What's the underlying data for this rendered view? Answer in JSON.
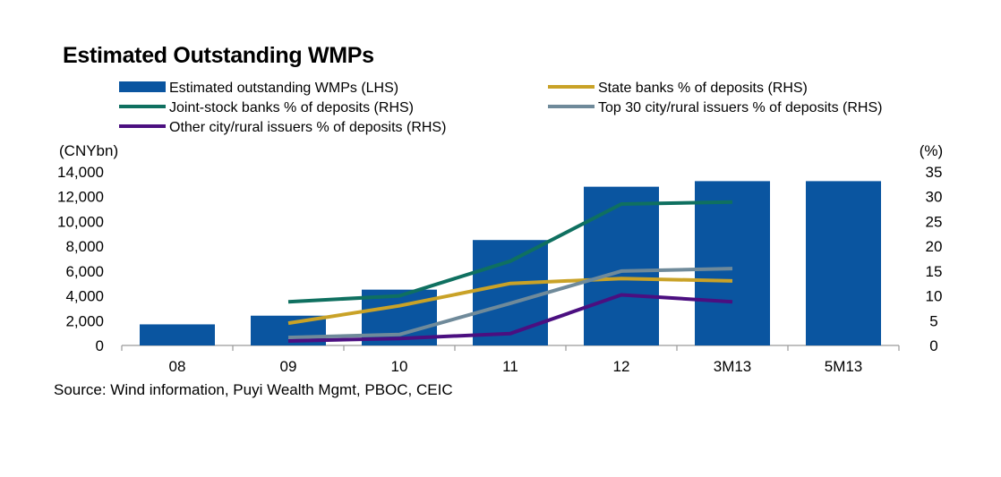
{
  "title": "Estimated Outstanding WMPs",
  "source": "Source: Wind information, Puyi Wealth Mgmt, PBOC, CEIC",
  "chart_data": {
    "type": "bar",
    "categories": [
      "08",
      "09",
      "10",
      "11",
      "12",
      "3M13",
      "5M13"
    ],
    "bars": {
      "name": "Estimated outstanding WMPs (LHS)",
      "color": "#0a55a0",
      "values": [
        1700,
        2400,
        4500,
        8500,
        12800,
        13250,
        13250
      ]
    },
    "lines": [
      {
        "name": "State banks % of deposits (RHS)",
        "color": "#c9a227",
        "values": [
          null,
          4.5,
          8.0,
          12.5,
          13.5,
          13.0,
          null
        ]
      },
      {
        "name": "Joint-stock banks % of deposits (RHS)",
        "color": "#0f7060",
        "values": [
          null,
          8.8,
          10.0,
          17.0,
          28.5,
          28.9,
          null
        ]
      },
      {
        "name": "Top 30 city/rural issuers % of deposits (RHS)",
        "color": "#6f8a9a",
        "values": [
          null,
          1.6,
          2.2,
          8.5,
          15.0,
          15.5,
          null
        ]
      },
      {
        "name": "Other city/rural issuers % of deposits (RHS)",
        "color": "#4b0f80",
        "values": [
          null,
          0.9,
          1.4,
          2.4,
          10.2,
          8.8,
          null
        ]
      }
    ],
    "left_axis": {
      "label": "(CNYbn)",
      "min": 0,
      "max": 14000,
      "step": 2000,
      "ticks": [
        "0",
        "2,000",
        "4,000",
        "6,000",
        "8,000",
        "10,000",
        "12,000",
        "14,000"
      ]
    },
    "right_axis": {
      "label": "(%)",
      "min": 0,
      "max": 35,
      "step": 5,
      "ticks": [
        "0",
        "5",
        "10",
        "15",
        "20",
        "25",
        "30",
        "35"
      ]
    },
    "grid": false,
    "legend_position": "top"
  }
}
